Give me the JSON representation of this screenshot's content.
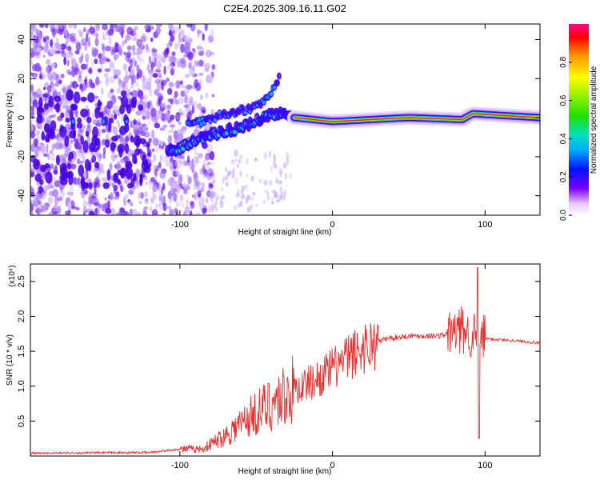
{
  "title": "C2E4.2025.309.16.11.G02",
  "chart_data": [
    {
      "type": "heatmap",
      "xlabel": "Height of straight line (km)",
      "ylabel": "Frequency (Hz)",
      "xlim": [
        -198,
        136
      ],
      "ylim": [
        -50,
        48
      ],
      "x_ticks": [
        -100,
        0,
        100
      ],
      "x_tick_labels": [
        "-100",
        "0",
        "100"
      ],
      "y_ticks": [
        -40,
        -20,
        0,
        20,
        40
      ],
      "y_tick_labels": [
        "-40",
        "-20",
        "0",
        "20",
        "40"
      ],
      "colorbar": {
        "label": "Normalized spectral amplitude",
        "range": [
          0,
          1
        ],
        "ticks": [
          0.0,
          0.2,
          0.4,
          0.6,
          0.8
        ],
        "tick_labels": [
          "0.0",
          "0.2",
          "0.4",
          "0.6",
          "0.8"
        ]
      },
      "ridge": [
        {
          "x": -105,
          "y": -17
        },
        {
          "x": -80,
          "y": -9
        },
        {
          "x": -60,
          "y": -5
        },
        {
          "x": -45,
          "y": 0
        },
        {
          "x": -33,
          "y": 3
        },
        {
          "x": -25,
          "y": 0
        },
        {
          "x": 0,
          "y": -2
        },
        {
          "x": 50,
          "y": 0
        },
        {
          "x": 85,
          "y": -1
        },
        {
          "x": 92,
          "y": 2
        },
        {
          "x": 136,
          "y": 0
        }
      ],
      "upper_branch": [
        {
          "x": -95,
          "y": -4
        },
        {
          "x": -70,
          "y": 2
        },
        {
          "x": -52,
          "y": 5
        },
        {
          "x": -42,
          "y": 10
        },
        {
          "x": -35,
          "y": 20
        }
      ]
    },
    {
      "type": "line",
      "xlabel": "Height of straight line (km)",
      "ylabel": "SNR (10 * v/v)",
      "y_multiplier": "(x10⁴)",
      "xlim": [
        -198,
        136
      ],
      "ylim": [
        0,
        2.75
      ],
      "x_ticks": [
        -100,
        0,
        100
      ],
      "x_tick_labels": [
        "-100",
        "0",
        "100"
      ],
      "y_ticks": [
        0.5,
        1.0,
        1.5,
        2.0,
        2.5
      ],
      "y_tick_labels": [
        "0.5",
        "1.0",
        "1.5",
        "2.0",
        "2.5"
      ],
      "color": "#e53030",
      "envelope": [
        {
          "x": -198,
          "y": 0.04
        },
        {
          "x": -120,
          "y": 0.05
        },
        {
          "x": -100,
          "y": 0.1
        },
        {
          "x": -85,
          "y": 0.1
        },
        {
          "x": -70,
          "y": 0.3
        },
        {
          "x": -55,
          "y": 0.55
        },
        {
          "x": -40,
          "y": 0.75
        },
        {
          "x": -25,
          "y": 0.95
        },
        {
          "x": -10,
          "y": 1.1
        },
        {
          "x": 0,
          "y": 1.25
        },
        {
          "x": 10,
          "y": 1.4
        },
        {
          "x": 20,
          "y": 1.55
        },
        {
          "x": 35,
          "y": 1.68
        },
        {
          "x": 50,
          "y": 1.72
        },
        {
          "x": 70,
          "y": 1.72
        },
        {
          "x": 85,
          "y": 1.8
        },
        {
          "x": 95,
          "y": 1.7
        },
        {
          "x": 100,
          "y": 1.68
        },
        {
          "x": 120,
          "y": 1.65
        },
        {
          "x": 136,
          "y": 1.62
        }
      ],
      "peak": {
        "x": 95,
        "y": 2.7
      },
      "dip": {
        "x": 95,
        "y": 0.25
      }
    }
  ]
}
